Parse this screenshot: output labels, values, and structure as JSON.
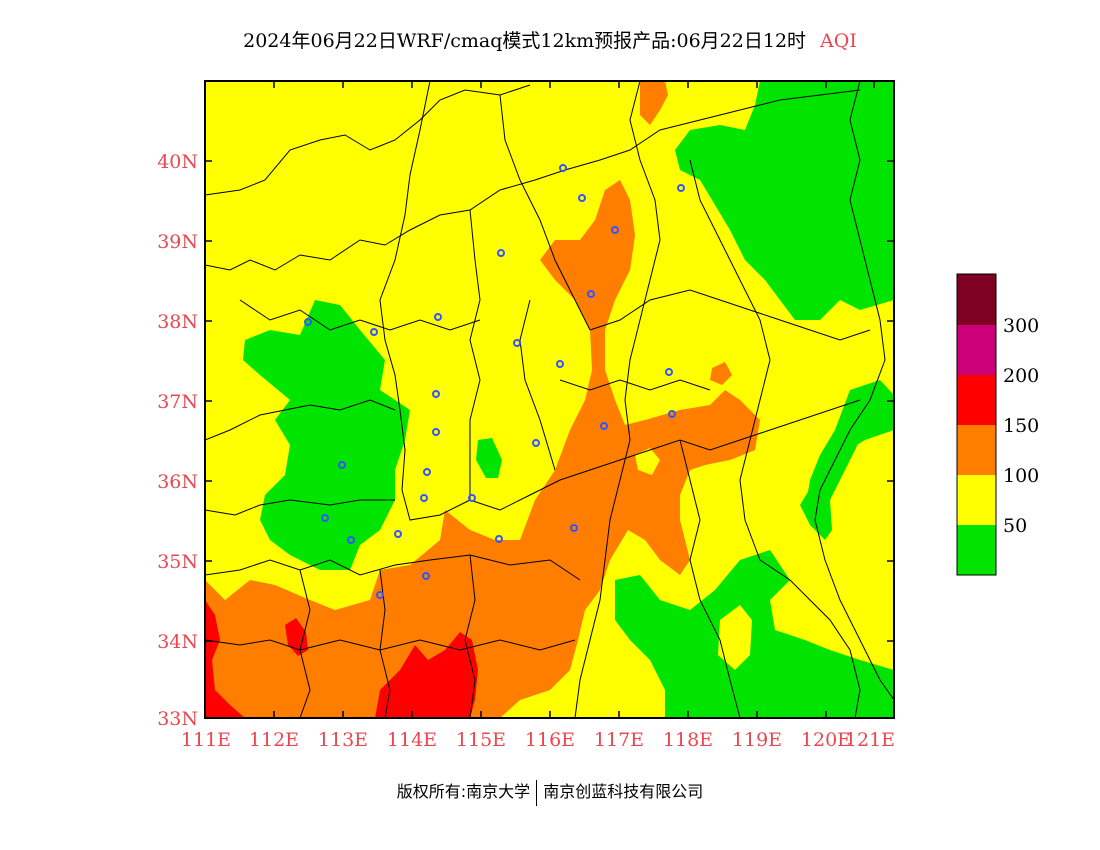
{
  "title": {
    "main": "2024年06月22日WRF/cmaq模式12km预报产品:06月22日12时",
    "variable": "AQI"
  },
  "map": {
    "lat_labels": [
      "40N",
      "39N",
      "38N",
      "37N",
      "36N",
      "35N",
      "34N",
      "33N"
    ],
    "lon_labels": [
      "111E",
      "112E",
      "113E",
      "114E",
      "115E",
      "116E",
      "117E",
      "118E",
      "119E",
      "120E",
      "121E"
    ],
    "extent": {
      "lon_min": 111,
      "lon_max": 121.3,
      "lat_min": 33,
      "lat_max": 41
    },
    "categories": [
      {
        "name": "0-50",
        "color": "#00e400"
      },
      {
        "name": "50-100",
        "color": "#ffff00"
      },
      {
        "name": "100-150",
        "color": "#ff7e00"
      },
      {
        "name": "150-200",
        "color": "#ff0000"
      },
      {
        "name": "200-300",
        "color": "#cc0077"
      },
      {
        "name": ">300",
        "color": "#7e0023"
      }
    ],
    "city_marker_color": "#3355ff"
  },
  "legend": {
    "labels": [
      "50",
      "100",
      "150",
      "200",
      "300"
    ],
    "colors": [
      "#00e400",
      "#ffff00",
      "#ff7e00",
      "#ff0000",
      "#cc0077",
      "#7e0023"
    ]
  },
  "footer": {
    "left": "版权所有:南京大学",
    "right": "南京创蓝科技有限公司"
  }
}
